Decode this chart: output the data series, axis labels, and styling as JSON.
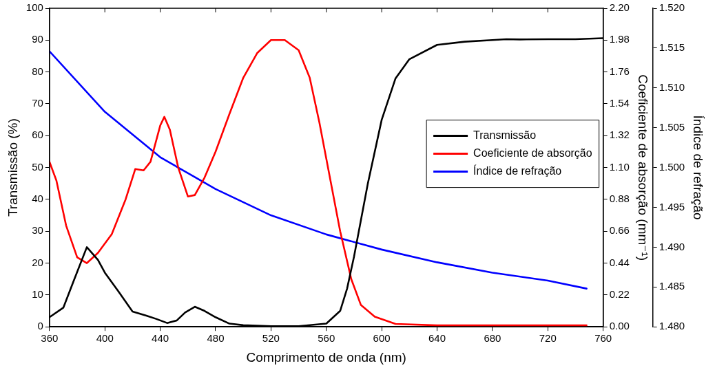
{
  "chart_data": {
    "type": "line",
    "xlabel": "Comprimento de onda (nm)",
    "ylabel": "Transmissão (%)",
    "y2label": "Coeficiente de absorção (mm⁻¹)",
    "y3label": "Índice de refração",
    "xlim": [
      360,
      760
    ],
    "xticks": [
      360,
      400,
      440,
      480,
      520,
      560,
      600,
      640,
      680,
      720,
      760
    ],
    "ylim": [
      0,
      100
    ],
    "yticks": [
      0,
      10,
      20,
      30,
      40,
      50,
      60,
      70,
      80,
      90,
      100
    ],
    "y2lim": [
      0,
      2.2
    ],
    "y2ticks": [
      {
        "value": 0,
        "label": "0.00"
      },
      {
        "value": 0.22,
        "label": "0.22"
      },
      {
        "value": 0.44,
        "label": "0.44"
      },
      {
        "value": 0.66,
        "label": "0.66"
      },
      {
        "value": 0.88,
        "label": "0.88"
      },
      {
        "value": 1.1,
        "label": "1.10"
      },
      {
        "value": 1.32,
        "label": "1.32"
      },
      {
        "value": 1.54,
        "label": "1.54"
      },
      {
        "value": 1.76,
        "label": "1.76"
      },
      {
        "value": 1.98,
        "label": "1.98"
      },
      {
        "value": 2.2,
        "label": "2.20"
      }
    ],
    "y3lim": [
      1.48,
      1.52
    ],
    "y3ticks": [
      {
        "value": 1.48,
        "label": "1.480"
      },
      {
        "value": 1.485,
        "label": "1.485"
      },
      {
        "value": 1.49,
        "label": "1.490"
      },
      {
        "value": 1.495,
        "label": "1.495"
      },
      {
        "value": 1.5,
        "label": "1.500"
      },
      {
        "value": 1.505,
        "label": "1.505"
      },
      {
        "value": 1.51,
        "label": "1.510"
      },
      {
        "value": 1.515,
        "label": "1.515"
      },
      {
        "value": 1.52,
        "label": "1.520"
      }
    ],
    "grid": false,
    "legend": "right",
    "marker": "none",
    "line_style": "solid",
    "series": [
      {
        "name": "Transmissão",
        "color": "#000000",
        "x": [
          360,
          370,
          378,
          387,
          395,
          400,
          410,
          420,
          430,
          437,
          445,
          452,
          458,
          465,
          472,
          480,
          490,
          500,
          520,
          540,
          560,
          570,
          575,
          580,
          590,
          600,
          610,
          620,
          640,
          660,
          680,
          690,
          700,
          720,
          740,
          760
        ],
        "values": [
          3,
          6,
          15,
          25,
          21,
          17,
          11,
          4.8,
          3.5,
          2.5,
          1.2,
          2,
          4.5,
          6.3,
          5,
          3,
          1,
          0.5,
          0.2,
          0.2,
          1,
          5,
          12,
          22,
          45,
          65,
          78,
          84,
          88.5,
          89.5,
          90,
          90.3,
          90.2,
          90.3,
          90.3,
          90.6
        ]
      },
      {
        "name": "Coeficiente de absorção",
        "color": "#ff0000",
        "axis": "y2",
        "x": [
          360,
          365,
          372,
          380,
          387,
          395,
          405,
          415,
          422,
          428,
          433,
          440,
          443,
          447,
          453,
          460,
          465,
          472,
          480,
          490,
          500,
          510,
          520,
          530,
          540,
          548,
          555,
          562,
          570,
          578,
          585,
          595,
          610,
          640,
          700,
          748
        ],
        "values": [
          1.14,
          1.01,
          0.7,
          0.48,
          0.44,
          0.51,
          0.64,
          0.88,
          1.09,
          1.08,
          1.14,
          1.39,
          1.45,
          1.36,
          1.1,
          0.9,
          0.91,
          1.03,
          1.21,
          1.47,
          1.72,
          1.89,
          1.98,
          1.98,
          1.91,
          1.72,
          1.41,
          1.06,
          0.66,
          0.33,
          0.15,
          0.07,
          0.02,
          0.01,
          0.01,
          0.01
        ]
      },
      {
        "name": "Índice de refração",
        "color": "#0000ff",
        "axis": "y3",
        "x": [
          360,
          400,
          440,
          480,
          520,
          560,
          600,
          640,
          680,
          720,
          748
        ],
        "values": [
          1.5146,
          1.507,
          1.5013,
          1.4973,
          1.494,
          1.4916,
          1.4897,
          1.4881,
          1.4868,
          1.4858,
          1.4848
        ]
      }
    ]
  }
}
